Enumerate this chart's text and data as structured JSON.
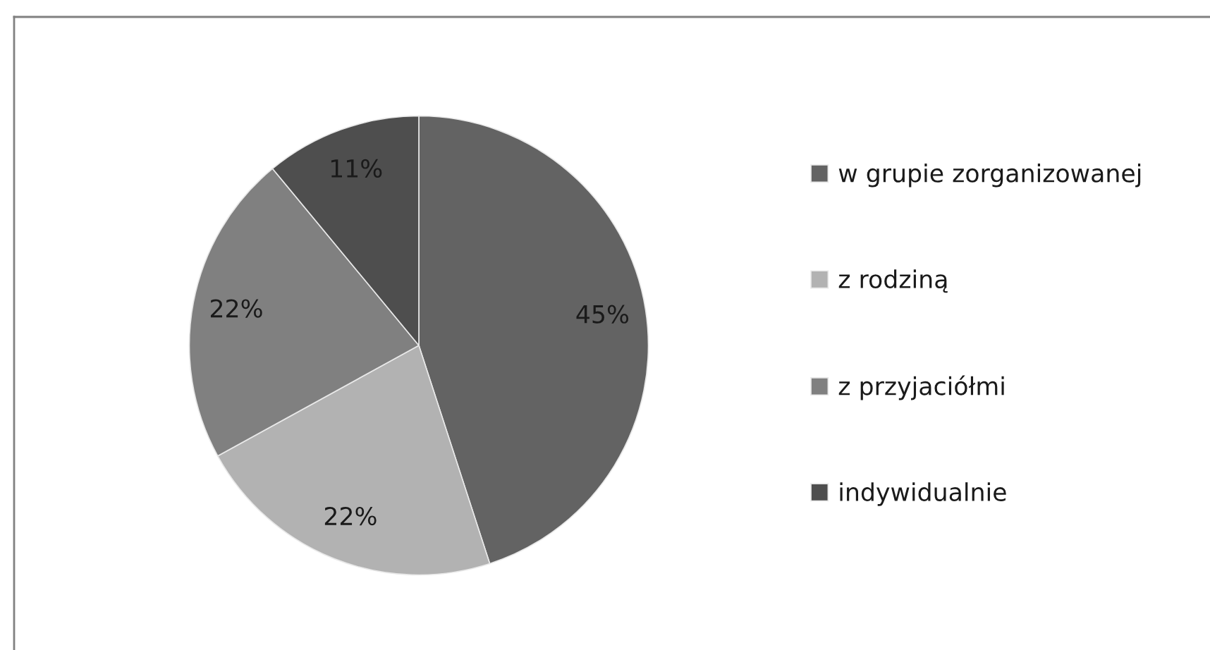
{
  "chart_data": {
    "type": "pie",
    "categories": [
      "w grupie zorganizowanej",
      "z rodziną",
      "z przyjaciółmi",
      "indywidualnie"
    ],
    "values": [
      45,
      22,
      22,
      11
    ],
    "colors": [
      "#636363",
      "#b2b2b2",
      "#808080",
      "#4e4e4e"
    ],
    "value_labels": [
      "45%",
      "22%",
      "22%",
      "11%"
    ],
    "legend": "right"
  }
}
